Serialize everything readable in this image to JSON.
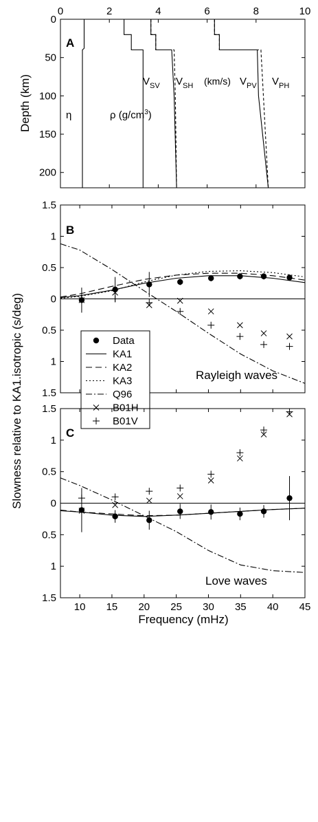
{
  "panel_a": {
    "label": "A",
    "ylabel": "Depth (km)",
    "xticks": [
      "0",
      "2",
      "4",
      "6",
      "8",
      "10"
    ],
    "yticks": [
      "0",
      "50",
      "100",
      "150",
      "200"
    ],
    "curve_labels": {
      "eta": "η",
      "rho": "ρ (g/cm",
      "rho_sup": "3",
      "rho_end": ")",
      "vsv_main": "V",
      "vsv_sub": "SV",
      "vsh_main": "V",
      "vsh_sub": "SH",
      "units": "(km/s)",
      "vpv_main": "V",
      "vpv_sub": "PV",
      "vph_main": "V",
      "vph_sub": "PH"
    }
  },
  "panel_b": {
    "label": "B",
    "annotation": "Rayleigh waves",
    "yticks": [
      "1.5",
      "1",
      "0.5",
      "0",
      "0.5",
      "1",
      "1.5"
    ]
  },
  "panel_c": {
    "label": "C",
    "annotation": "Love waves",
    "yticks": [
      "1.5",
      "1",
      "0.5",
      "0",
      "0.5",
      "1",
      "1.5"
    ],
    "xticks": [
      "10",
      "15",
      "20",
      "25",
      "30",
      "35",
      "40",
      "45"
    ],
    "xlabel": "Frequency (mHz)"
  },
  "shared_ylabel": "Slowness relative to KA1.isotropic (s/deg)",
  "legend": {
    "items": [
      {
        "label": "Data",
        "marker": "dot"
      },
      {
        "label": "KA1",
        "marker": "solid"
      },
      {
        "label": "KA2",
        "marker": "dashed"
      },
      {
        "label": "KA3",
        "marker": "dotted"
      },
      {
        "label": "Q96",
        "marker": "dashdot"
      },
      {
        "label": "B01H",
        "marker": "x"
      },
      {
        "label": "B01V",
        "marker": "plus"
      }
    ]
  },
  "chart_data": [
    {
      "type": "line",
      "title": "",
      "xlim": [
        0,
        10
      ],
      "ylim": [
        220,
        0
      ],
      "y_inverted": true,
      "series": [
        {
          "name": "η",
          "points": [
            [
              0.97,
              0
            ],
            [
              0.97,
              38
            ],
            [
              0.9,
              40
            ],
            [
              0.9,
              220
            ]
          ]
        },
        {
          "name": "ρ (g/cm3)",
          "points": [
            [
              2.6,
              0
            ],
            [
              2.6,
              20
            ],
            [
              2.9,
              20
            ],
            [
              2.9,
              40
            ],
            [
              3.38,
              40
            ],
            [
              3.38,
              220
            ]
          ]
        },
        {
          "name": "VSV",
          "points": [
            [
              3.7,
              0
            ],
            [
              3.7,
              20
            ],
            [
              3.9,
              20
            ],
            [
              3.9,
              40
            ],
            [
              4.55,
              40
            ],
            [
              4.65,
              100
            ],
            [
              4.75,
              220
            ]
          ]
        },
        {
          "name": "VSH",
          "points": [
            [
              3.7,
              0
            ],
            [
              3.7,
              20
            ],
            [
              3.9,
              20
            ],
            [
              3.9,
              40
            ],
            [
              4.65,
              40
            ],
            [
              4.7,
              100
            ],
            [
              4.75,
              220
            ]
          ]
        },
        {
          "name": "VPV",
          "points": [
            [
              6.3,
              0
            ],
            [
              6.3,
              20
            ],
            [
              6.5,
              20
            ],
            [
              6.5,
              40
            ],
            [
              8.05,
              40
            ],
            [
              8.1,
              100
            ],
            [
              8.5,
              220
            ]
          ]
        },
        {
          "name": "VPH",
          "points": [
            [
              6.3,
              0
            ],
            [
              6.3,
              20
            ],
            [
              6.5,
              20
            ],
            [
              6.5,
              40
            ],
            [
              8.2,
              40
            ],
            [
              8.3,
              100
            ],
            [
              8.5,
              220
            ]
          ]
        }
      ]
    },
    {
      "type": "line",
      "title": "Rayleigh waves",
      "xlim": [
        7,
        45
      ],
      "ylim": [
        -1.5,
        1.5
      ],
      "y_inverted": true,
      "series": [
        {
          "name": "Data",
          "marker": "dot",
          "x": [
            10.3,
            15.5,
            20.8,
            25.6,
            30.4,
            34.9,
            38.6,
            42.6
          ],
          "y": [
            0.02,
            -0.15,
            -0.23,
            -0.27,
            -0.33,
            -0.36,
            -0.36,
            -0.34
          ],
          "err": [
            0.2,
            0.2,
            0.2,
            0.05,
            0.05,
            0.05,
            0.05,
            0.05
          ]
        },
        {
          "name": "KA1",
          "x": [
            7,
            10,
            15,
            20,
            25,
            30,
            35,
            40,
            45
          ],
          "y": [
            -0.02,
            -0.05,
            -0.14,
            -0.25,
            -0.33,
            -0.37,
            -0.37,
            -0.33,
            -0.26
          ]
        },
        {
          "name": "KA2",
          "x": [
            7,
            10,
            15,
            20,
            25,
            30,
            35,
            40,
            45
          ],
          "y": [
            -0.03,
            -0.08,
            -0.2,
            -0.31,
            -0.38,
            -0.41,
            -0.41,
            -0.37,
            -0.3
          ]
        },
        {
          "name": "KA3",
          "x": [
            7,
            10,
            15,
            20,
            25,
            30,
            35,
            40,
            45
          ],
          "y": [
            -0.01,
            -0.04,
            -0.13,
            -0.27,
            -0.38,
            -0.44,
            -0.45,
            -0.42,
            -0.35
          ]
        },
        {
          "name": "Q96",
          "x": [
            7,
            10,
            15,
            20,
            25,
            30,
            35,
            40,
            45
          ],
          "y": [
            -0.88,
            -0.78,
            -0.47,
            -0.13,
            0.2,
            0.55,
            0.88,
            1.15,
            1.35
          ]
        },
        {
          "name": "B01H",
          "marker": "x",
          "x": [
            10.3,
            15.5,
            20.8,
            25.6,
            30.4,
            34.9,
            38.6,
            42.6
          ],
          "y": [
            0.02,
            -0.1,
            0.1,
            0.03,
            0.2,
            0.42,
            0.55,
            0.6
          ]
        },
        {
          "name": "B01V",
          "marker": "plus",
          "x": [
            10.3,
            15.5,
            20.8,
            25.6,
            30.4,
            34.9,
            38.6,
            42.6
          ],
          "y": [
            0.0,
            0.0,
            0.06,
            0.2,
            0.42,
            0.6,
            0.73,
            0.76
          ]
        }
      ]
    },
    {
      "type": "line",
      "title": "Love waves",
      "xlim": [
        7,
        45
      ],
      "ylim": [
        -1.5,
        1.5
      ],
      "y_inverted": true,
      "xlabel": "Frequency (mHz)",
      "series": [
        {
          "name": "Data",
          "marker": "dot",
          "x": [
            10.3,
            15.5,
            20.8,
            25.6,
            30.4,
            34.9,
            38.6,
            42.6
          ],
          "y": [
            0.11,
            0.21,
            0.27,
            0.13,
            0.14,
            0.17,
            0.13,
            -0.08
          ],
          "err": [
            0.35,
            0.1,
            0.15,
            0.12,
            0.12,
            0.1,
            0.1,
            0.35
          ]
        },
        {
          "name": "KA1",
          "x": [
            7,
            10,
            15,
            20,
            25,
            30,
            35,
            40,
            45
          ],
          "y": [
            0.12,
            0.14,
            0.19,
            0.21,
            0.19,
            0.16,
            0.13,
            0.1,
            0.08
          ]
        },
        {
          "name": "KA2",
          "x": [
            7,
            10,
            15,
            20,
            25,
            30,
            35,
            40,
            45
          ],
          "y": [
            0.11,
            0.14,
            0.17,
            0.2,
            0.19,
            0.16,
            0.13,
            0.1,
            0.08
          ]
        },
        {
          "name": "Q96",
          "x": [
            7,
            10,
            15,
            20,
            25,
            30,
            35,
            40,
            45
          ],
          "y": [
            -0.4,
            -0.28,
            -0.05,
            0.2,
            0.45,
            0.75,
            0.98,
            1.07,
            1.1
          ]
        },
        {
          "name": "B01H",
          "marker": "x",
          "x": [
            10.3,
            15.5,
            20.8,
            25.6,
            30.4,
            34.9,
            38.6,
            42.6
          ],
          "y": [
            0.12,
            0.03,
            -0.04,
            -0.11,
            -0.36,
            -0.71,
            -1.09,
            -1.41
          ]
        },
        {
          "name": "B01V",
          "marker": "plus",
          "x": [
            10.3,
            15.5,
            20.8,
            25.6,
            30.4,
            34.9,
            38.6,
            42.6
          ],
          "y": [
            -0.08,
            -0.1,
            -0.19,
            -0.24,
            -0.46,
            -0.8,
            -1.16,
            -1.45
          ]
        }
      ]
    }
  ]
}
